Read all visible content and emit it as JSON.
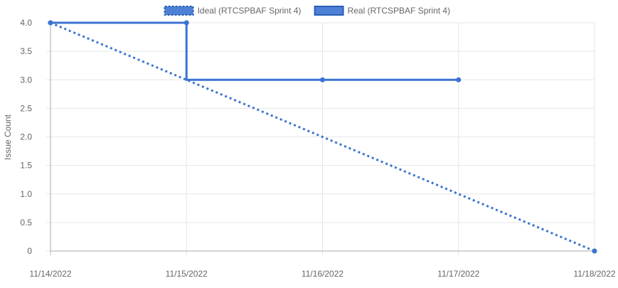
{
  "chart_data": {
    "type": "line",
    "title": "",
    "xlabel": "",
    "ylabel": "Issue Count",
    "categories": [
      "11/14/2022",
      "11/15/2022",
      "11/16/2022",
      "11/17/2022",
      "11/18/2022"
    ],
    "y_ticks": [
      "0",
      "0.5",
      "1.0",
      "1.5",
      "2.0",
      "2.5",
      "3.0",
      "3.5",
      "4.0"
    ],
    "ylim": [
      0,
      4
    ],
    "grid": true,
    "legend_position": "top",
    "series": [
      {
        "name": "Ideal (RTCSPBAF Sprint 4)",
        "style": "dotted",
        "color": "#3b73d1",
        "stepped": false,
        "points": [
          {
            "x": "11/14/2022",
            "y": 4
          },
          {
            "x": "11/18/2022",
            "y": 0
          }
        ]
      },
      {
        "name": "Real (RTCSPBAF Sprint 4)",
        "style": "solid",
        "color": "#3b73d1",
        "stepped": true,
        "points": [
          {
            "x": "11/14/2022",
            "y": 4
          },
          {
            "x": "11/15/2022",
            "y": 4
          },
          {
            "x": "11/15/2022",
            "y": 3
          },
          {
            "x": "11/16/2022",
            "y": 3
          },
          {
            "x": "11/17/2022",
            "y": 3
          }
        ]
      }
    ]
  }
}
